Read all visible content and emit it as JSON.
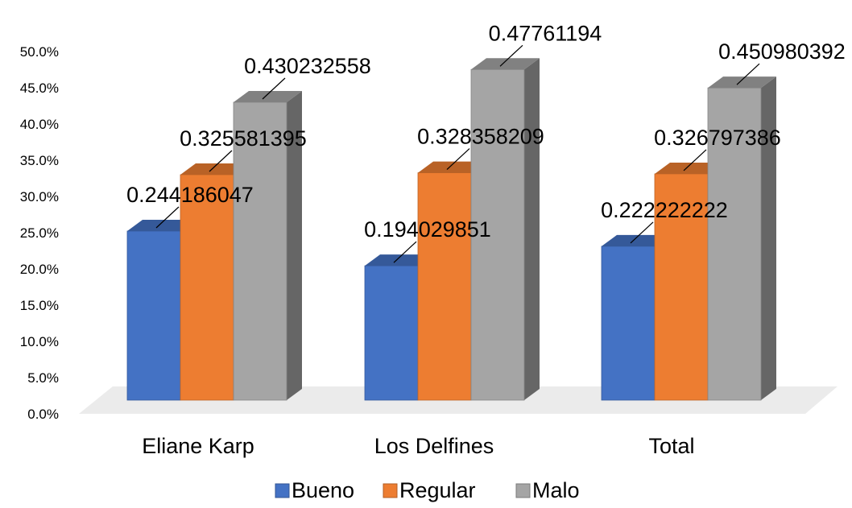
{
  "chart_data": {
    "type": "bar",
    "style": "3d-clustered-column",
    "categories": [
      "Eliane Karp",
      "Los Delfines",
      "Total"
    ],
    "series": [
      {
        "name": "Bueno",
        "color": "#4472C4",
        "values": [
          0.244186047,
          0.194029851,
          0.222222222
        ],
        "labels": [
          "0.244186047",
          "0.194029851",
          "0.222222222"
        ]
      },
      {
        "name": "Regular",
        "color": "#ED7D31",
        "values": [
          0.325581395,
          0.328358209,
          0.326797386
        ],
        "labels": [
          "0.325581395",
          "0.328358209",
          "0.326797386"
        ]
      },
      {
        "name": "Malo",
        "color": "#A5A5A5",
        "values": [
          0.430232558,
          0.47761194,
          0.450980392
        ],
        "labels": [
          "0.430232558",
          "0.47761194",
          "0.450980392"
        ]
      }
    ],
    "y_ticks": [
      "0.0%",
      "5.0%",
      "10.0%",
      "15.0%",
      "20.0%",
      "25.0%",
      "30.0%",
      "35.0%",
      "40.0%",
      "45.0%",
      "50.0%"
    ],
    "ylim": [
      0,
      0.5
    ],
    "grid": false,
    "legend_position": "bottom",
    "title": "",
    "xlabel": "",
    "ylabel": ""
  }
}
